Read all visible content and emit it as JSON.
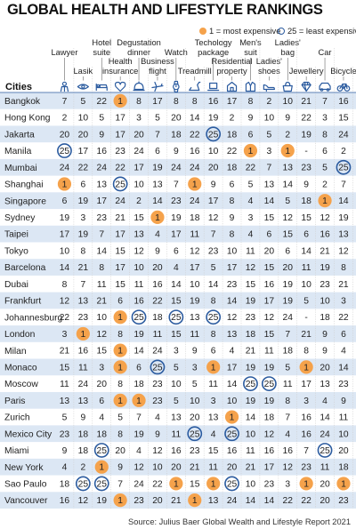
{
  "title": "GLOBAL HEALTH AND LIFESTYLE RANKINGS",
  "legend": {
    "most": "1 = most expensive",
    "least": "25 = least expensive",
    "most_color": "#f5a24b",
    "least_color": "#2b5b9f"
  },
  "source": "Source: Julius Baer Global Wealth and Lifestyle Report 2021",
  "colors": {
    "row_band": "#dce7f4",
    "text": "#222222",
    "icon": "#2b5b9f"
  },
  "chart_data": {
    "type": "table",
    "row_header": "Cities",
    "columns": [
      {
        "label": "Lawyer",
        "icon": "lawyer-icon"
      },
      {
        "label": "Lasik",
        "icon": "eye-icon"
      },
      {
        "label": "Hotel suite",
        "icon": "bed-icon"
      },
      {
        "label": "Health insurance",
        "icon": "health-icon"
      },
      {
        "label": "Degustation dinner",
        "icon": "dinner-icon"
      },
      {
        "label": "Business flight",
        "icon": "plane-icon"
      },
      {
        "label": "Watch",
        "icon": "watch-icon"
      },
      {
        "label": "Treadmill",
        "icon": "treadmill-icon"
      },
      {
        "label": "Techology package",
        "icon": "laptop-icon"
      },
      {
        "label": "Residential property",
        "icon": "house-icon"
      },
      {
        "label": "Men's suit",
        "icon": "suit-icon"
      },
      {
        "label": "Ladies' shoes",
        "icon": "shoe-icon"
      },
      {
        "label": "Ladies' bag",
        "icon": "bag-icon"
      },
      {
        "label": "Jewellery",
        "icon": "diamond-icon"
      },
      {
        "label": "Car",
        "icon": "car-icon"
      },
      {
        "label": "Bicycle",
        "icon": "bicycle-icon"
      }
    ],
    "rows": [
      {
        "city": "Bangkok",
        "values": [
          "7",
          "5",
          "22",
          "1",
          "8",
          "17",
          "8",
          "8",
          "16",
          "17",
          "8",
          "2",
          "10",
          "21",
          "7",
          "16"
        ]
      },
      {
        "city": "Hong Kong",
        "values": [
          "2",
          "10",
          "5",
          "17",
          "3",
          "5",
          "20",
          "14",
          "19",
          "2",
          "9",
          "10",
          "9",
          "22",
          "3",
          "15"
        ]
      },
      {
        "city": "Jakarta",
        "values": [
          "20",
          "20",
          "9",
          "17",
          "20",
          "7",
          "18",
          "22",
          "25",
          "18",
          "6",
          "5",
          "2",
          "19",
          "8",
          "24"
        ]
      },
      {
        "city": "Manila",
        "values": [
          "25",
          "17",
          "16",
          "23",
          "24",
          "6",
          "9",
          "16",
          "10",
          "22",
          "1",
          "3",
          "1",
          "-",
          "6",
          "2"
        ]
      },
      {
        "city": "Mumbai",
        "values": [
          "24",
          "22",
          "24",
          "22",
          "17",
          "19",
          "24",
          "24",
          "20",
          "18",
          "22",
          "7",
          "13",
          "23",
          "5",
          "25"
        ]
      },
      {
        "city": "Shanghai",
        "values": [
          "1",
          "6",
          "13",
          "25",
          "10",
          "13",
          "7",
          "1",
          "9",
          "6",
          "5",
          "13",
          "14",
          "9",
          "2",
          "7"
        ]
      },
      {
        "city": "Singapore",
        "values": [
          "6",
          "19",
          "17",
          "24",
          "2",
          "14",
          "23",
          "24",
          "17",
          "8",
          "4",
          "14",
          "5",
          "18",
          "1",
          "14"
        ]
      },
      {
        "city": "Sydney",
        "values": [
          "19",
          "3",
          "23",
          "21",
          "15",
          "1",
          "19",
          "18",
          "12",
          "9",
          "3",
          "15",
          "12",
          "15",
          "12",
          "19"
        ]
      },
      {
        "city": "Taipei",
        "values": [
          "17",
          "19",
          "7",
          "17",
          "13",
          "4",
          "17",
          "11",
          "7",
          "8",
          "4",
          "6",
          "15",
          "6",
          "16",
          "13"
        ]
      },
      {
        "city": "Tokyo",
        "values": [
          "10",
          "8",
          "14",
          "15",
          "12",
          "9",
          "6",
          "12",
          "23",
          "10",
          "11",
          "20",
          "6",
          "14",
          "21",
          "12"
        ]
      },
      {
        "city": "Barcelona",
        "values": [
          "14",
          "21",
          "8",
          "17",
          "10",
          "20",
          "4",
          "17",
          "5",
          "17",
          "12",
          "15",
          "20",
          "11",
          "19",
          "8"
        ]
      },
      {
        "city": "Dubai",
        "values": [
          "8",
          "7",
          "11",
          "15",
          "11",
          "16",
          "14",
          "10",
          "14",
          "23",
          "15",
          "16",
          "19",
          "10",
          "23",
          "21"
        ]
      },
      {
        "city": "Frankfurt",
        "values": [
          "12",
          "13",
          "21",
          "6",
          "16",
          "22",
          "15",
          "19",
          "8",
          "14",
          "19",
          "17",
          "19",
          "5",
          "10",
          "3"
        ]
      },
      {
        "city": "Johannesburg",
        "values": [
          "22",
          "23",
          "10",
          "1",
          "25",
          "18",
          "25",
          "13",
          "25",
          "12",
          "23",
          "12",
          "24",
          "-",
          "18",
          "22"
        ]
      },
      {
        "city": "London",
        "values": [
          "3",
          "1",
          "12",
          "8",
          "19",
          "11",
          "15",
          "11",
          "8",
          "13",
          "18",
          "15",
          "7",
          "21",
          "9",
          "6"
        ]
      },
      {
        "city": "Milan",
        "values": [
          "21",
          "16",
          "15",
          "1",
          "14",
          "24",
          "3",
          "9",
          "6",
          "4",
          "21",
          "11",
          "18",
          "8",
          "9",
          "4"
        ]
      },
      {
        "city": "Monaco",
        "values": [
          "15",
          "11",
          "3",
          "1",
          "6",
          "25",
          "5",
          "3",
          "1",
          "17",
          "19",
          "19",
          "5",
          "1",
          "20",
          "14"
        ]
      },
      {
        "city": "Moscow",
        "values": [
          "11",
          "24",
          "20",
          "8",
          "18",
          "23",
          "10",
          "5",
          "11",
          "14",
          "25",
          "25",
          "11",
          "17",
          "13",
          "23"
        ]
      },
      {
        "city": "Paris",
        "values": [
          "13",
          "13",
          "6",
          "1",
          "1",
          "23",
          "5",
          "10",
          "3",
          "10",
          "19",
          "19",
          "8",
          "3",
          "4",
          "9"
        ]
      },
      {
        "city": "Zurich",
        "values": [
          "5",
          "9",
          "4",
          "5",
          "7",
          "4",
          "13",
          "20",
          "13",
          "1",
          "14",
          "18",
          "7",
          "16",
          "14",
          "11"
        ]
      },
      {
        "city": "Mexico City",
        "values": [
          "23",
          "18",
          "18",
          "8",
          "19",
          "9",
          "11",
          "25",
          "4",
          "25",
          "10",
          "12",
          "4",
          "16",
          "24",
          "10"
        ]
      },
      {
        "city": "Miami",
        "values": [
          "9",
          "18",
          "25",
          "20",
          "4",
          "12",
          "16",
          "23",
          "15",
          "16",
          "11",
          "16",
          "16",
          "7",
          "25",
          "20"
        ]
      },
      {
        "city": "New York",
        "values": [
          "4",
          "2",
          "1",
          "9",
          "12",
          "10",
          "20",
          "21",
          "11",
          "20",
          "21",
          "17",
          "12",
          "23",
          "11",
          "18"
        ]
      },
      {
        "city": "Sao Paulo",
        "values": [
          "18",
          "25",
          "25",
          "7",
          "24",
          "22",
          "1",
          "15",
          "1",
          "25",
          "10",
          "23",
          "3",
          "1",
          "20",
          "1"
        ]
      },
      {
        "city": "Vancouver",
        "values": [
          "16",
          "12",
          "19",
          "1",
          "23",
          "20",
          "21",
          "1",
          "13",
          "24",
          "14",
          "14",
          "22",
          "22",
          "20",
          "23"
        ]
      }
    ]
  }
}
